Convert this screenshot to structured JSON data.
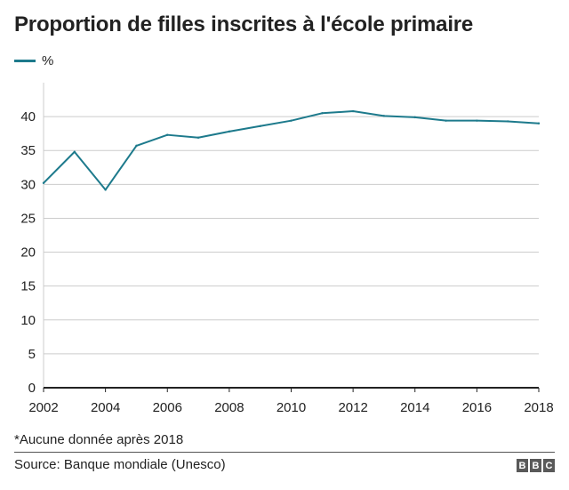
{
  "title": "Proportion de filles inscrites à l'école primaire",
  "legend": {
    "label": "%"
  },
  "colors": {
    "line": "#1d7a8c",
    "grid": "#cccccc",
    "axis": "#222222"
  },
  "note": "*Aucune donnée après 2018",
  "source": "Source: Banque mondiale (Unesco)",
  "logo": [
    "B",
    "B",
    "C"
  ],
  "chart_data": {
    "type": "line",
    "title": "Proportion de filles inscrites à l'école primaire",
    "xlabel": "",
    "ylabel": "",
    "x": [
      2002,
      2003,
      2004,
      2005,
      2006,
      2007,
      2008,
      2009,
      2010,
      2011,
      2012,
      2013,
      2014,
      2015,
      2016,
      2017,
      2018
    ],
    "series": [
      {
        "name": "%",
        "values": [
          30.2,
          34.8,
          29.2,
          35.7,
          37.3,
          36.9,
          37.8,
          38.6,
          39.4,
          40.5,
          40.8,
          40.1,
          39.9,
          39.4,
          39.4,
          39.3,
          39.0
        ]
      }
    ],
    "xticks": [
      "2002",
      "2004",
      "2006",
      "2008",
      "2010",
      "2012",
      "2014",
      "2016",
      "2018"
    ],
    "yticks": [
      "0",
      "5",
      "10",
      "15",
      "20",
      "25",
      "30",
      "35",
      "40"
    ],
    "xlim": [
      2002,
      2018
    ],
    "ylim": [
      0,
      45
    ],
    "grid": true,
    "legend_position": "top-left"
  }
}
